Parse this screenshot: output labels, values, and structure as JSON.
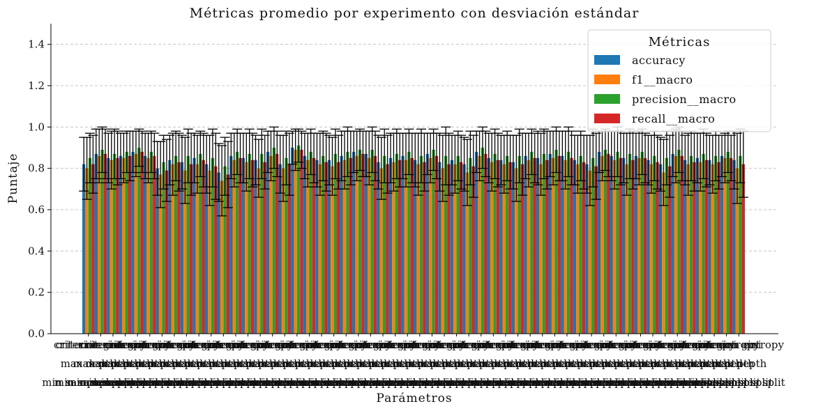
{
  "chart_data": {
    "type": "bar",
    "title": "Métricas promedio por experimento con desviación estándar",
    "xlabel": "Parámetros",
    "ylabel": "Puntaje",
    "ylim": [
      0,
      1.5
    ],
    "yticks": [
      "0.0",
      "0.2",
      "0.4",
      "0.6",
      "0.8",
      "1.0",
      "1.2",
      "1.4"
    ],
    "grid": "y-dashed",
    "legend": {
      "title": "Métricas",
      "placement": "top-right"
    },
    "category_label_lines": [
      "criterion",
      "max depth",
      "min samples split"
    ],
    "categories": [
      "gini",
      "entropy",
      "gini",
      "entropy",
      "gini",
      "entropy",
      "gini",
      "entropy",
      "gini",
      "entropy",
      "gini",
      "entropy",
      "gini",
      "entropy",
      "gini",
      "entropy",
      "gini",
      "entropy",
      "gini",
      "entropy",
      "gini",
      "entropy",
      "gini",
      "entropy",
      "gini",
      "entropy",
      "gini",
      "entropy",
      "gini",
      "entropy",
      "gini",
      "entropy",
      "gini",
      "entropy",
      "gini",
      "entropy",
      "gini",
      "entropy",
      "gini",
      "entropy",
      "gini",
      "entropy",
      "gini",
      "entropy",
      "gini",
      "entropy",
      "gini",
      "entropy",
      "gini",
      "entropy",
      "gini",
      "entropy",
      "gini",
      "entropy"
    ],
    "series": [
      {
        "name": "accuracy",
        "color": "#1f77b4",
        "values": [
          0.82,
          0.87,
          0.85,
          0.86,
          0.88,
          0.86,
          0.8,
          0.84,
          0.83,
          0.85,
          0.82,
          0.78,
          0.86,
          0.85,
          0.84,
          0.88,
          0.82,
          0.9,
          0.86,
          0.84,
          0.84,
          0.86,
          0.88,
          0.87,
          0.83,
          0.85,
          0.86,
          0.84,
          0.87,
          0.83,
          0.84,
          0.82,
          0.88,
          0.85,
          0.84,
          0.83,
          0.86,
          0.85,
          0.87,
          0.86,
          0.84,
          0.82,
          0.88,
          0.86,
          0.85,
          0.86,
          0.84,
          0.82,
          0.87,
          0.84,
          0.85,
          0.84,
          0.86,
          0.84
        ],
        "errors": [
          0.13,
          0.12,
          0.12,
          0.11,
          0.1,
          0.11,
          0.13,
          0.12,
          0.13,
          0.12,
          0.14,
          0.14,
          0.11,
          0.12,
          0.12,
          0.1,
          0.14,
          0.08,
          0.11,
          0.13,
          0.12,
          0.12,
          0.1,
          0.11,
          0.13,
          0.12,
          0.11,
          0.13,
          0.1,
          0.14,
          0.12,
          0.13,
          0.1,
          0.12,
          0.12,
          0.13,
          0.11,
          0.13,
          0.11,
          0.12,
          0.12,
          0.14,
          0.1,
          0.12,
          0.12,
          0.11,
          0.12,
          0.13,
          0.11,
          0.12,
          0.12,
          0.12,
          0.1,
          0.14
        ]
      },
      {
        "name": "f1__macro",
        "color": "#ff7f0e",
        "values": [
          0.8,
          0.86,
          0.84,
          0.85,
          0.87,
          0.85,
          0.77,
          0.82,
          0.79,
          0.82,
          0.79,
          0.74,
          0.84,
          0.83,
          0.8,
          0.86,
          0.8,
          0.89,
          0.84,
          0.82,
          0.81,
          0.84,
          0.86,
          0.85,
          0.8,
          0.83,
          0.84,
          0.82,
          0.85,
          0.8,
          0.82,
          0.78,
          0.86,
          0.83,
          0.82,
          0.8,
          0.84,
          0.82,
          0.85,
          0.84,
          0.82,
          0.79,
          0.86,
          0.84,
          0.82,
          0.85,
          0.82,
          0.78,
          0.86,
          0.82,
          0.83,
          0.82,
          0.85,
          0.8
        ],
        "errors": [
          0.15,
          0.13,
          0.14,
          0.12,
          0.11,
          0.12,
          0.16,
          0.15,
          0.16,
          0.14,
          0.17,
          0.17,
          0.13,
          0.14,
          0.14,
          0.12,
          0.16,
          0.1,
          0.13,
          0.15,
          0.14,
          0.14,
          0.12,
          0.13,
          0.15,
          0.14,
          0.13,
          0.15,
          0.12,
          0.16,
          0.14,
          0.16,
          0.12,
          0.14,
          0.14,
          0.16,
          0.13,
          0.15,
          0.13,
          0.14,
          0.14,
          0.17,
          0.12,
          0.14,
          0.15,
          0.13,
          0.14,
          0.16,
          0.13,
          0.15,
          0.14,
          0.14,
          0.12,
          0.17
        ]
      },
      {
        "name": "precision__macro",
        "color": "#2ca02c",
        "values": [
          0.85,
          0.89,
          0.87,
          0.88,
          0.9,
          0.88,
          0.83,
          0.86,
          0.86,
          0.87,
          0.85,
          0.81,
          0.88,
          0.87,
          0.87,
          0.9,
          0.85,
          0.91,
          0.88,
          0.86,
          0.87,
          0.88,
          0.89,
          0.89,
          0.86,
          0.87,
          0.88,
          0.86,
          0.89,
          0.86,
          0.86,
          0.85,
          0.9,
          0.87,
          0.86,
          0.86,
          0.88,
          0.87,
          0.89,
          0.88,
          0.86,
          0.85,
          0.89,
          0.88,
          0.87,
          0.88,
          0.86,
          0.85,
          0.89,
          0.86,
          0.87,
          0.86,
          0.88,
          0.86
        ],
        "errors": [
          0.12,
          0.11,
          0.12,
          0.1,
          0.09,
          0.1,
          0.13,
          0.12,
          0.13,
          0.11,
          0.14,
          0.14,
          0.11,
          0.12,
          0.12,
          0.1,
          0.13,
          0.08,
          0.11,
          0.12,
          0.12,
          0.12,
          0.1,
          0.11,
          0.13,
          0.12,
          0.11,
          0.13,
          0.1,
          0.14,
          0.12,
          0.13,
          0.1,
          0.12,
          0.12,
          0.13,
          0.11,
          0.12,
          0.11,
          0.12,
          0.12,
          0.14,
          0.1,
          0.12,
          0.12,
          0.11,
          0.12,
          0.13,
          0.11,
          0.12,
          0.12,
          0.12,
          0.1,
          0.13
        ]
      },
      {
        "name": "recall__macro",
        "color": "#d62728",
        "values": [
          0.82,
          0.87,
          0.85,
          0.86,
          0.88,
          0.86,
          0.79,
          0.83,
          0.82,
          0.84,
          0.81,
          0.77,
          0.85,
          0.84,
          0.83,
          0.87,
          0.82,
          0.89,
          0.85,
          0.83,
          0.83,
          0.85,
          0.87,
          0.86,
          0.82,
          0.84,
          0.85,
          0.83,
          0.86,
          0.82,
          0.83,
          0.81,
          0.87,
          0.84,
          0.83,
          0.82,
          0.85,
          0.84,
          0.86,
          0.85,
          0.83,
          0.81,
          0.87,
          0.85,
          0.84,
          0.85,
          0.83,
          0.81,
          0.86,
          0.83,
          0.84,
          0.83,
          0.85,
          0.82
        ],
        "errors": [
          0.14,
          0.12,
          0.13,
          0.12,
          0.1,
          0.11,
          0.15,
          0.14,
          0.15,
          0.13,
          0.16,
          0.16,
          0.12,
          0.13,
          0.13,
          0.11,
          0.15,
          0.09,
          0.12,
          0.14,
          0.13,
          0.13,
          0.11,
          0.12,
          0.14,
          0.13,
          0.12,
          0.14,
          0.11,
          0.15,
          0.13,
          0.15,
          0.11,
          0.13,
          0.13,
          0.15,
          0.12,
          0.14,
          0.12,
          0.13,
          0.13,
          0.16,
          0.11,
          0.13,
          0.14,
          0.12,
          0.13,
          0.15,
          0.12,
          0.14,
          0.13,
          0.13,
          0.11,
          0.16
        ]
      }
    ]
  }
}
